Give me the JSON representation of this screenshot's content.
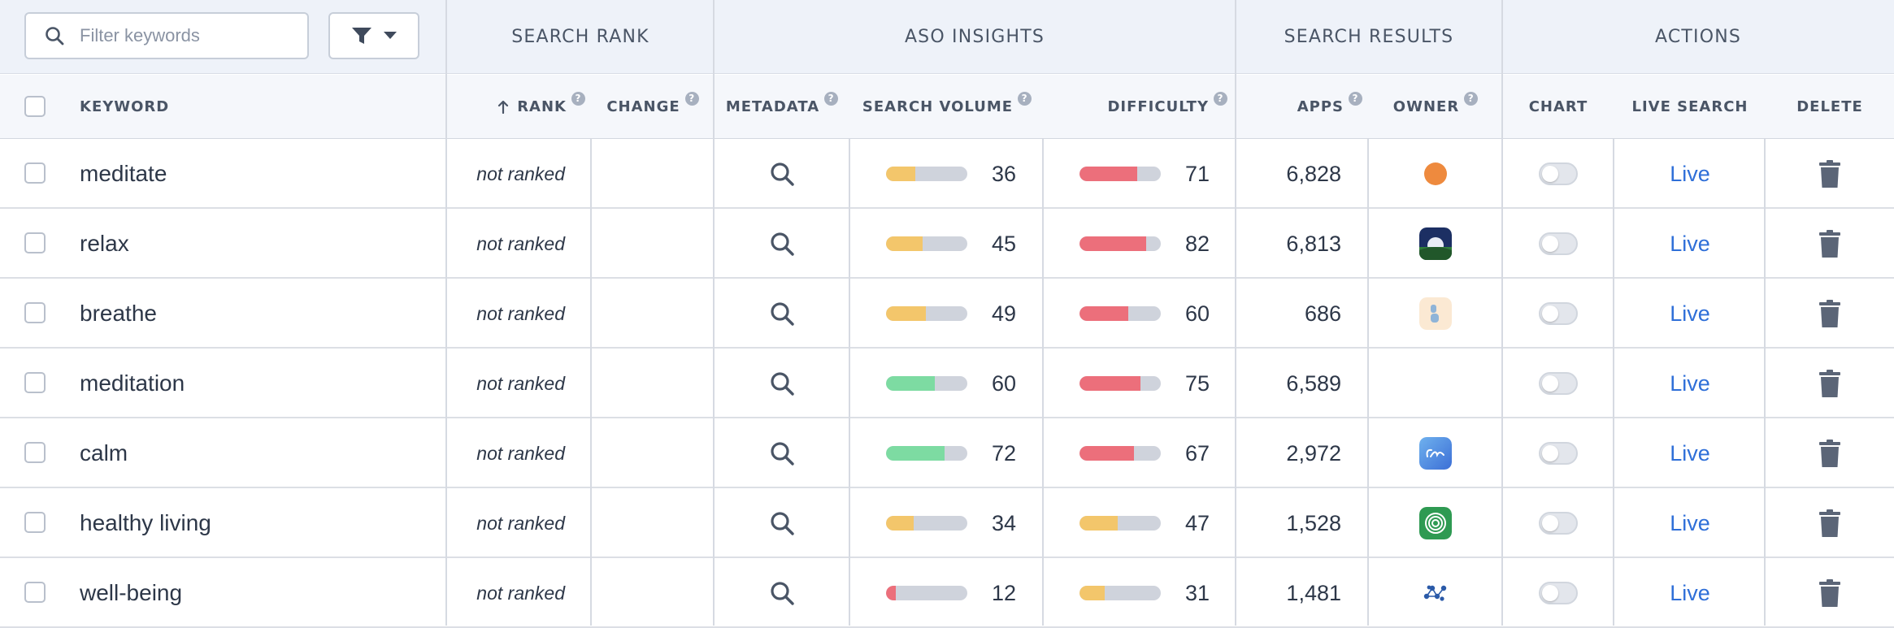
{
  "toolbar": {
    "filter_placeholder": "Filter keywords"
  },
  "groups": {
    "search_rank": "SEARCH RANK",
    "aso_insights": "ASO INSIGHTS",
    "search_results": "SEARCH RESULTS",
    "actions": "ACTIONS"
  },
  "columns": {
    "keyword": "KEYWORD",
    "rank": "RANK",
    "change": "CHANGE",
    "metadata": "METADATA",
    "search_volume": "SEARCH VOLUME",
    "difficulty": "DIFFICULTY",
    "apps": "APPS",
    "owner": "OWNER",
    "chart": "CHART",
    "live_search": "LIVE SEARCH",
    "delete": "DELETE"
  },
  "colors": {
    "yellow": "#f3c66b",
    "green": "#7ddba2",
    "red": "#ec6f7b",
    "link": "#2f6fd8"
  },
  "rows": [
    {
      "keyword": "meditate",
      "rank": "not ranked",
      "volume": 36,
      "volume_color": "#f3c66b",
      "difficulty": 71,
      "difficulty_color": "#ec6f7b",
      "apps": "6,828",
      "owner_icon": "orange-dot-icon",
      "live": "Live"
    },
    {
      "keyword": "relax",
      "rank": "not ranked",
      "volume": 45,
      "volume_color": "#f3c66b",
      "difficulty": 82,
      "difficulty_color": "#ec6f7b",
      "apps": "6,813",
      "owner_icon": "night-landscape-app-icon",
      "live": "Live"
    },
    {
      "keyword": "breathe",
      "rank": "not ranked",
      "volume": 49,
      "volume_color": "#f3c66b",
      "difficulty": 60,
      "difficulty_color": "#ec6f7b",
      "apps": "686",
      "owner_icon": "breathe-b-app-icon",
      "live": "Live"
    },
    {
      "keyword": "meditation",
      "rank": "not ranked",
      "volume": 60,
      "volume_color": "#7ddba2",
      "difficulty": 75,
      "difficulty_color": "#ec6f7b",
      "apps": "6,589",
      "owner_icon": "",
      "live": "Live"
    },
    {
      "keyword": "calm",
      "rank": "not ranked",
      "volume": 72,
      "volume_color": "#7ddba2",
      "difficulty": 67,
      "difficulty_color": "#ec6f7b",
      "apps": "2,972",
      "owner_icon": "calm-app-icon",
      "live": "Live"
    },
    {
      "keyword": "healthy living",
      "rank": "not ranked",
      "volume": 34,
      "volume_color": "#f3c66b",
      "difficulty": 47,
      "difficulty_color": "#f3c66b",
      "apps": "1,528",
      "owner_icon": "green-rings-app-icon",
      "live": "Live"
    },
    {
      "keyword": "well-being",
      "rank": "not ranked",
      "volume": 12,
      "volume_color": "#ec6f7b",
      "difficulty": 31,
      "difficulty_color": "#f3c66b",
      "apps": "1,481",
      "owner_icon": "blue-molecule-app-icon",
      "live": "Live"
    }
  ]
}
